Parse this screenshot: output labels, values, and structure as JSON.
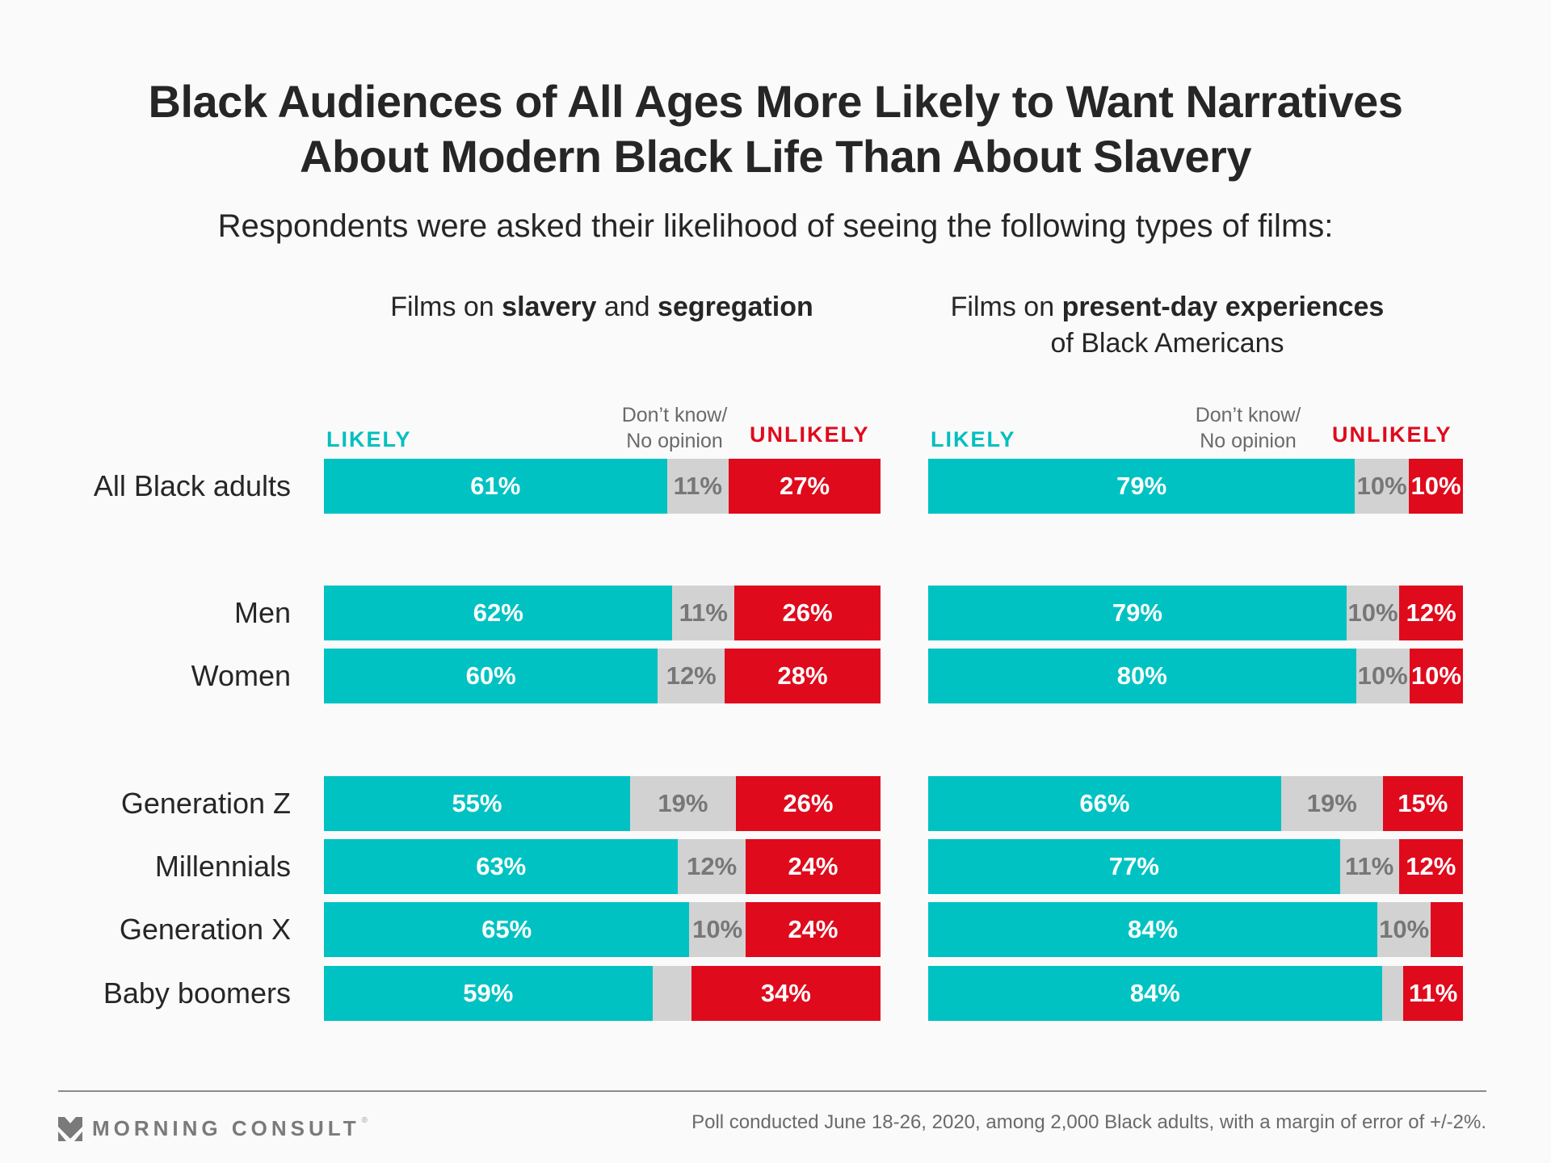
{
  "header": {
    "title_line1": "Black Audiences of All Ages More Likely to Want Narratives",
    "title_line2": "About Modern Black Life Than About Slavery",
    "subtitle": "Respondents were asked their likelihood of seeing the following types of films:"
  },
  "legend": {
    "likely": "LIKELY",
    "dont_know_line1": "Don’t know/",
    "dont_know_line2": "No opinion",
    "unlikely": "UNLIKELY"
  },
  "colors": {
    "likely": "#00c2c3",
    "neutral": "#d2d2d2",
    "unlikely": "#df0a1c"
  },
  "footer": {
    "brand": "MORNING CONSULT",
    "note": "Poll conducted June 18-26, 2020, among 2,000 Black adults, with a margin of error of +/-2%."
  },
  "chart_data": [
    {
      "type": "bar",
      "stacked": true,
      "orientation": "horizontal",
      "title_parts": [
        {
          "text": "Films on ",
          "bold": false
        },
        {
          "text": "slavery",
          "bold": true
        },
        {
          "text": " and ",
          "bold": false
        },
        {
          "text": "segregation",
          "bold": true
        }
      ],
      "categories": [
        "All Black adults",
        "Men",
        "Women",
        "Generation Z",
        "Millennials",
        "Generation X",
        "Baby boomers"
      ],
      "series": [
        {
          "name": "Likely",
          "values": [
            61,
            62,
            60,
            55,
            63,
            65,
            59
          ],
          "labels": [
            "61%",
            "62%",
            "60%",
            "55%",
            "63%",
            "65%",
            "59%"
          ]
        },
        {
          "name": "Don't know/No opinion",
          "values": [
            11,
            11,
            12,
            19,
            12,
            10,
            7
          ],
          "labels": [
            "11%",
            "11%",
            "12%",
            "19%",
            "12%",
            "10%",
            ""
          ]
        },
        {
          "name": "Unlikely",
          "values": [
            27,
            26,
            28,
            26,
            24,
            24,
            34
          ],
          "labels": [
            "27%",
            "26%",
            "28%",
            "26%",
            "24%",
            "24%",
            "34%"
          ]
        }
      ],
      "xlim": [
        0,
        100
      ]
    },
    {
      "type": "bar",
      "stacked": true,
      "orientation": "horizontal",
      "title_parts": [
        {
          "text": "Films on ",
          "bold": false
        },
        {
          "text": "present-day experiences",
          "bold": true
        },
        {
          "text": "of Black Americans",
          "bold": false,
          "newline": true
        }
      ],
      "categories": [
        "All Black adults",
        "Men",
        "Women",
        "Generation Z",
        "Millennials",
        "Generation X",
        "Baby boomers"
      ],
      "series": [
        {
          "name": "Likely",
          "values": [
            79,
            79,
            80,
            66,
            77,
            84,
            84
          ],
          "labels": [
            "79%",
            "79%",
            "80%",
            "66%",
            "77%",
            "84%",
            "84%"
          ]
        },
        {
          "name": "Don't know/No opinion",
          "values": [
            10,
            10,
            10,
            19,
            11,
            10,
            4
          ],
          "labels": [
            "10%",
            "10%",
            "10%",
            "19%",
            "11%",
            "10%",
            ""
          ]
        },
        {
          "name": "Unlikely",
          "values": [
            10,
            12,
            10,
            15,
            12,
            6,
            11
          ],
          "labels": [
            "10%",
            "12%",
            "10%",
            "15%",
            "12%",
            "",
            "11%"
          ]
        }
      ],
      "xlim": [
        0,
        100
      ]
    }
  ]
}
